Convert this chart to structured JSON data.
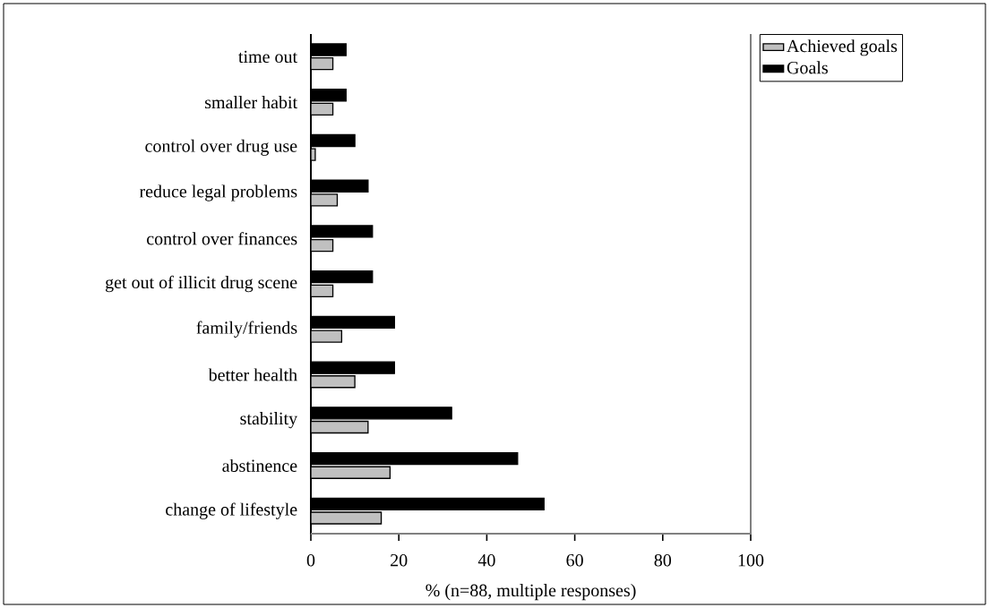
{
  "chart_data": {
    "type": "bar",
    "orientation": "horizontal",
    "xlabel": "% (n=88, multiple responses)",
    "categories": [
      "time out",
      "smaller habit",
      "control over drug use",
      "reduce legal problems",
      "control over finances",
      "get out of illicit drug scene",
      "family/friends",
      "better health",
      "stability",
      "abstinence",
      "change of lifestyle"
    ],
    "series": [
      {
        "name": "Achieved goals",
        "color": "#c0c0c0",
        "values": [
          5,
          5,
          1,
          6,
          5,
          5,
          7,
          10,
          13,
          18,
          16
        ]
      },
      {
        "name": "Goals",
        "color": "#000000",
        "values": [
          8,
          8,
          10,
          13,
          14,
          14,
          19,
          19,
          32,
          47,
          53
        ]
      }
    ],
    "xlim": [
      0,
      100
    ],
    "xticks": [
      0,
      20,
      40,
      60,
      80,
      100
    ],
    "legend": "right"
  }
}
